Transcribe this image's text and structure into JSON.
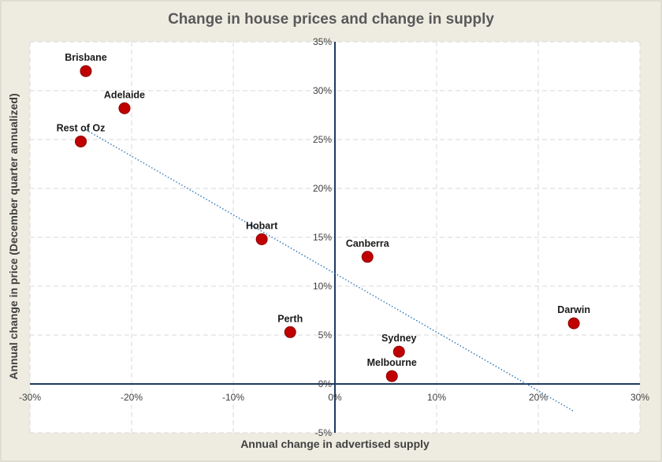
{
  "chart_data": {
    "type": "scatter",
    "title": "Change in house prices and change in supply",
    "xlabel": "Annual change in advertised supply",
    "ylabel": "Annual change in price (December quarter annualized)",
    "xlim": [
      -30,
      30
    ],
    "ylim": [
      -5,
      35
    ],
    "x_ticks": [
      -30,
      -20,
      -10,
      0,
      10,
      20,
      30
    ],
    "y_ticks": [
      -5,
      0,
      5,
      10,
      15,
      20,
      25,
      30,
      35
    ],
    "x_tick_labels": [
      "-30%",
      "-20%",
      "-10%",
      "0%",
      "10%",
      "20%",
      "30%"
    ],
    "y_tick_labels": [
      "-5%",
      "0%",
      "5%",
      "10%",
      "15%",
      "20%",
      "25%",
      "30%",
      "35%"
    ],
    "grid": true,
    "legend": "none",
    "marker_color": "#c00000",
    "trendline_color": "#2e75b6",
    "points": [
      {
        "label": "Brisbane",
        "x": -24.5,
        "y": 32.0
      },
      {
        "label": "Adelaide",
        "x": -20.7,
        "y": 28.2
      },
      {
        "label": "Rest of Oz",
        "x": -25.0,
        "y": 24.8
      },
      {
        "label": "Hobart",
        "x": -7.2,
        "y": 14.8
      },
      {
        "label": "Canberra",
        "x": 3.2,
        "y": 13.0
      },
      {
        "label": "Perth",
        "x": -4.4,
        "y": 5.3
      },
      {
        "label": "Darwin",
        "x": 23.5,
        "y": 6.2
      },
      {
        "label": "Sydney",
        "x": 6.3,
        "y": 3.3
      },
      {
        "label": "Melbourne",
        "x": 5.6,
        "y": 0.8
      }
    ],
    "trendline": {
      "type": "linear",
      "x": [
        -24.5,
        23.5
      ],
      "y": [
        26.0,
        -2.8
      ]
    }
  }
}
